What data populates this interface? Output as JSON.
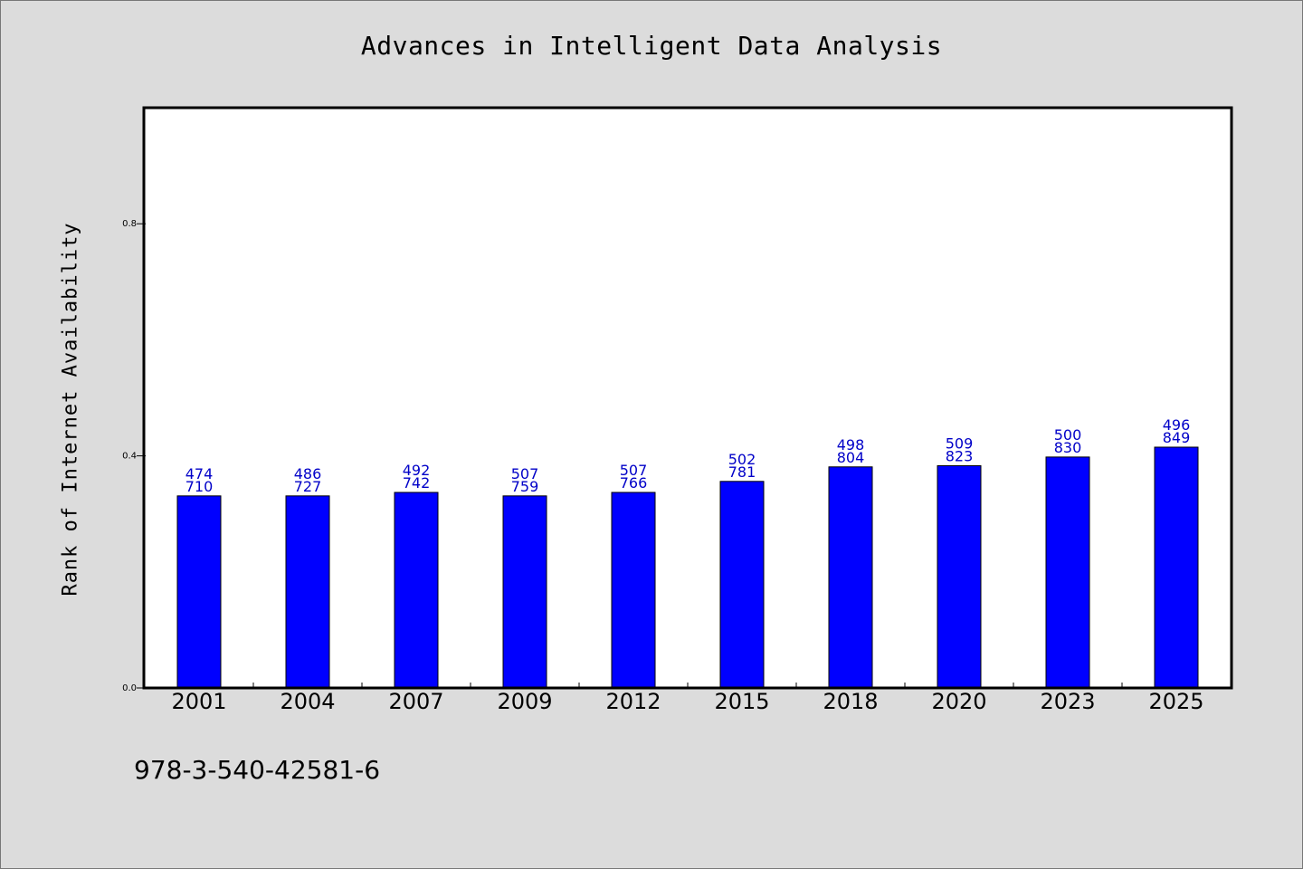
{
  "chart_data": {
    "type": "bar",
    "title": "Advances in Intelligent Data Analysis",
    "xlabel": "",
    "ylabel": "Rank of Internet Availability",
    "categories": [
      "2001",
      "2004",
      "2007",
      "2009",
      "2012",
      "2015",
      "2018",
      "2020",
      "2023",
      "2025"
    ],
    "values": [
      0.331,
      0.331,
      0.337,
      0.331,
      0.337,
      0.356,
      0.381,
      0.383,
      0.398,
      0.415
    ],
    "labels_top": [
      "474",
      "486",
      "492",
      "507",
      "507",
      "502",
      "498",
      "509",
      "500",
      "496"
    ],
    "labels_bottom": [
      "710",
      "727",
      "742",
      "759",
      "766",
      "781",
      "804",
      "823",
      "830",
      "849"
    ],
    "ylim": [
      0,
      1.0
    ],
    "yticks": [
      {
        "value": 0.0,
        "label": "0.0"
      },
      {
        "value": 0.4,
        "label": "0.4"
      },
      {
        "value": 0.8,
        "label": "0.8"
      }
    ],
    "bar_color": "#0000ff",
    "label_color": "#0000c8",
    "grid": false
  },
  "footnote": "978-3-540-42581-6"
}
